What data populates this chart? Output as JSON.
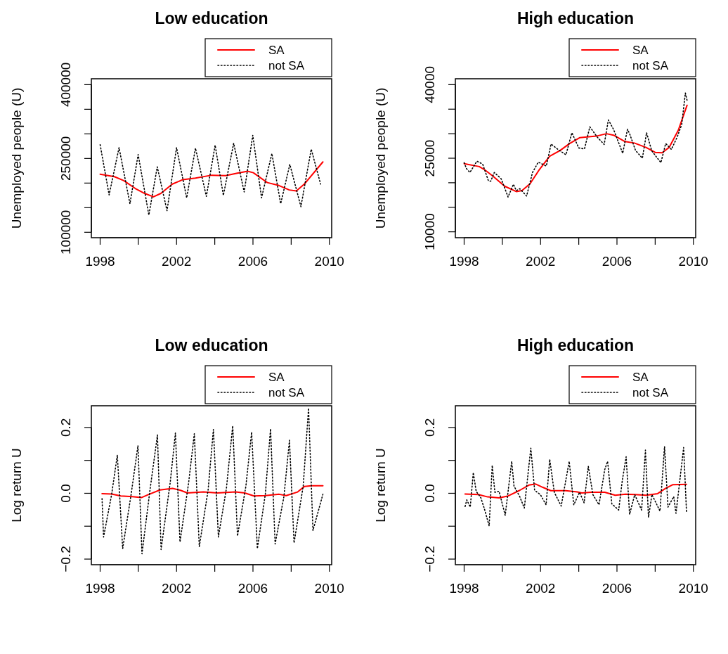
{
  "chart_data": [
    {
      "type": "line",
      "title": "Low education",
      "ylabel": "Unemployed people (U)",
      "xlim": [
        1997.54,
        2010.12
      ],
      "ylim": [
        89000,
        412000
      ],
      "xticks": [
        1998,
        {
          "value": 2000,
          "label": null
        },
        2002,
        {
          "value": 2004,
          "label": null
        },
        2006,
        {
          "value": 2008,
          "label": null
        },
        2010
      ],
      "yticks": [
        100000,
        {
          "value": 150000,
          "label": null
        },
        {
          "value": 200000,
          "label": null
        },
        250000,
        {
          "value": 300000,
          "label": null
        },
        {
          "value": 350000,
          "label": null
        },
        400000
      ],
      "legend": "top right",
      "series": [
        {
          "name": "SA",
          "color": "#ff0000",
          "line_style": "solid",
          "x": [
            1998,
            1998.75,
            1999.24,
            1999.84,
            2000.33,
            2000.79,
            2001.18,
            2001.78,
            2002.33,
            2002.99,
            2003.84,
            2004.57,
            2005.18,
            2005.72,
            2006.02,
            2006.75,
            2007.36,
            2007.9,
            2008.27,
            2008.69,
            2009.66
          ],
          "values": [
            218000,
            213000,
            205000,
            189000,
            179000,
            172000,
            179000,
            198000,
            207000,
            210000,
            216000,
            215000,
            220000,
            224000,
            221000,
            201000,
            195000,
            186000,
            184000,
            198000,
            243000
          ]
        },
        {
          "name": "not SA",
          "color": "#000000",
          "line_style": "dotted",
          "x": [
            1998.0,
            1998.47,
            1998.99,
            1999.56,
            1999.99,
            2000.55,
            2000.99,
            2001.5,
            2002.0,
            2002.53,
            2002.99,
            2003.56,
            2004.02,
            2004.45,
            2004.99,
            2005.54,
            2005.99,
            2006.45,
            2006.99,
            2007.45,
            2007.93,
            2008.51,
            2009.05,
            2009.54
          ],
          "values": [
            278000,
            176000,
            272000,
            158000,
            258000,
            135000,
            233000,
            144000,
            272000,
            170000,
            271000,
            173000,
            277000,
            175000,
            281000,
            182000,
            297000,
            170000,
            260000,
            158000,
            238000,
            152000,
            269000,
            198000
          ]
        }
      ]
    },
    {
      "type": "line",
      "title": "High education",
      "ylabel": "Unemployed people (U)",
      "xlim": [
        1997.54,
        2010.12
      ],
      "ylim": [
        8800,
        41200
      ],
      "xticks": [
        1998,
        {
          "value": 2000,
          "label": null
        },
        2002,
        {
          "value": 2004,
          "label": null
        },
        2006,
        {
          "value": 2008,
          "label": null
        },
        2010
      ],
      "yticks": [
        10000,
        {
          "value": 15000,
          "label": null
        },
        {
          "value": 20000,
          "label": null
        },
        25000,
        {
          "value": 30000,
          "label": null
        },
        {
          "value": 35000,
          "label": null
        },
        40000
      ],
      "legend": "top right",
      "series": [
        {
          "name": "SA",
          "color": "#ff0000",
          "line_style": "solid",
          "x": [
            1998,
            1998.79,
            1999.09,
            1999.52,
            2000.12,
            2000.73,
            2001.03,
            2001.45,
            2001.94,
            2002.48,
            2003.03,
            2003.52,
            2004.06,
            2004.91,
            2005.45,
            2005.82,
            2006.42,
            2006.91,
            2007.52,
            2008.0,
            2008.36,
            2008.73,
            2009.21,
            2009.67
          ],
          "values": [
            23900,
            23300,
            22600,
            21300,
            19300,
            18200,
            18400,
            19800,
            22700,
            25400,
            26600,
            28000,
            29200,
            29500,
            30000,
            29700,
            28400,
            28100,
            27200,
            26200,
            26100,
            27200,
            30700,
            35800
          ]
        },
        {
          "name": "not SA",
          "color": "#000000",
          "line_style": "dotted",
          "x": [
            1998,
            1998.12,
            1998.3,
            1998.67,
            1998.97,
            1999.27,
            1999.39,
            1999.58,
            1999.94,
            2000.3,
            2000.58,
            2000.73,
            2000.91,
            2001.27,
            2001.58,
            2001.88,
            2002.3,
            2002.55,
            2002.91,
            2003.33,
            2003.64,
            2004.0,
            2004.3,
            2004.58,
            2004.97,
            2005.33,
            2005.55,
            2005.82,
            2006.3,
            2006.55,
            2006.67,
            2006.97,
            2007.33,
            2007.55,
            2007.82,
            2008.3,
            2008.55,
            2008.85,
            2009.15,
            2009.39,
            2009.58,
            2009.67
          ],
          "values": [
            24100,
            22900,
            22100,
            24400,
            23800,
            20400,
            20300,
            22100,
            20800,
            17100,
            19700,
            18400,
            18800,
            17300,
            22100,
            24200,
            23400,
            27900,
            26800,
            25700,
            30200,
            27100,
            26900,
            31400,
            29300,
            27800,
            32800,
            30900,
            26000,
            30900,
            29900,
            26600,
            25000,
            30200,
            26500,
            24100,
            28000,
            26800,
            29300,
            31900,
            38300,
            36800
          ]
        }
      ]
    },
    {
      "type": "line",
      "title": "Low education",
      "ylabel": "Log return U",
      "xlim": [
        1997.54,
        2010.12
      ],
      "ylim": [
        -0.217,
        0.266
      ],
      "xticks": [
        1998,
        {
          "value": 2000,
          "label": null
        },
        2002,
        {
          "value": 2004,
          "label": null
        },
        2006,
        {
          "value": 2008,
          "label": null
        },
        2010
      ],
      "yticks": [
        {
          "value": -0.2,
          "label": "−0.2"
        },
        {
          "value": -0.1,
          "label": null
        },
        {
          "value": 0,
          "label": "0.0"
        },
        {
          "value": 0.1,
          "label": null
        },
        {
          "value": 0.2,
          "label": "0.2"
        }
      ],
      "legend": "top right",
      "series": [
        {
          "name": "SA",
          "color": "#ff0000",
          "line_style": "solid",
          "x": [
            1998.1,
            1998.6,
            1999.08,
            1999.68,
            2000.16,
            2000.52,
            2001.13,
            2001.79,
            2002.21,
            2002.57,
            2003.41,
            2004.13,
            2005.09,
            2005.57,
            2006.05,
            2006.65,
            2007.37,
            2007.74,
            2008.34,
            2008.7,
            2009.06,
            2009.66
          ],
          "values": [
            -0.001,
            -0.002,
            -0.008,
            -0.01,
            -0.013,
            -0.004,
            0.01,
            0.015,
            0.009,
            0.001,
            0.004,
            0.001,
            0.004,
            0.001,
            -0.008,
            -0.007,
            -0.003,
            -0.007,
            0.004,
            0.021,
            0.023,
            0.023
          ]
        },
        {
          "name": "not SA",
          "color": "#000000",
          "line_style": "dotted",
          "x": [
            1998.1,
            1998.18,
            1998.6,
            1998.9,
            1999.18,
            1999.62,
            1999.98,
            2000.19,
            2000.62,
            2001.0,
            2001.19,
            2001.67,
            2001.94,
            2002.18,
            2002.63,
            2002.93,
            2003.19,
            2003.65,
            2003.93,
            2004.19,
            2004.61,
            2004.94,
            2005.19,
            2005.63,
            2005.93,
            2006.23,
            2006.65,
            2006.92,
            2007.16,
            2007.62,
            2007.91,
            2008.15,
            2008.63,
            2008.91,
            2009.14,
            2009.42,
            2009.66
          ],
          "values": [
            -0.016,
            -0.133,
            -0.004,
            0.116,
            -0.168,
            -0.004,
            0.145,
            -0.184,
            0.015,
            0.177,
            -0.171,
            0.034,
            0.183,
            -0.148,
            0.031,
            0.181,
            -0.162,
            0.009,
            0.194,
            -0.133,
            0.015,
            0.205,
            -0.13,
            0.022,
            0.186,
            -0.168,
            -0.001,
            0.196,
            -0.154,
            -0.01,
            0.161,
            -0.151,
            0.022,
            0.259,
            -0.113,
            -0.054,
            -0.003
          ]
        }
      ]
    },
    {
      "type": "line",
      "title": "High education",
      "ylabel": "Log return U",
      "xlim": [
        1997.54,
        2010.12
      ],
      "ylim": [
        -0.217,
        0.266
      ],
      "xticks": [
        1998,
        {
          "value": 2000,
          "label": null
        },
        2002,
        {
          "value": 2004,
          "label": null
        },
        2006,
        {
          "value": 2008,
          "label": null
        },
        2010
      ],
      "yticks": [
        {
          "value": -0.2,
          "label": "−0.2"
        },
        {
          "value": -0.1,
          "label": null
        },
        {
          "value": 0,
          "label": "0.0"
        },
        {
          "value": 0.1,
          "label": null
        },
        {
          "value": 0.2,
          "label": "0.2"
        }
      ],
      "legend": "top right",
      "series": [
        {
          "name": "SA",
          "color": "#ff0000",
          "line_style": "solid",
          "x": [
            1998.05,
            1998.75,
            1999.23,
            1999.83,
            2000.31,
            2000.91,
            2001.39,
            2001.75,
            2002.12,
            2002.54,
            2003.32,
            2003.92,
            2004.16,
            2004.64,
            2005.36,
            2005.91,
            2006.45,
            2006.93,
            2007.53,
            2008.13,
            2008.55,
            2008.91,
            2009.64
          ],
          "values": [
            -0.002,
            -0.004,
            -0.011,
            -0.014,
            -0.008,
            0.009,
            0.025,
            0.028,
            0.018,
            0.008,
            0.008,
            0.004,
            0.001,
            0.003,
            0.003,
            -0.006,
            -0.003,
            -0.004,
            -0.006,
            -0.001,
            0.015,
            0.026,
            0.027
          ]
        },
        {
          "name": "not SA",
          "color": "#000000",
          "line_style": "dotted",
          "x": [
            1998.05,
            1998.14,
            1998.32,
            1998.48,
            1998.63,
            1998.87,
            1999.05,
            1999.31,
            1999.47,
            1999.61,
            1999.83,
            2000.01,
            2000.15,
            2000.49,
            2000.61,
            2000.91,
            2001.15,
            2001.49,
            2001.69,
            2001.99,
            2002.29,
            2002.48,
            2002.72,
            2003.08,
            2003.5,
            2003.74,
            2004.04,
            2004.28,
            2004.5,
            2004.74,
            2005.06,
            2005.36,
            2005.51,
            2005.73,
            2006.09,
            2006.27,
            2006.48,
            2006.66,
            2006.93,
            2007.29,
            2007.49,
            2007.65,
            2007.83,
            2008.25,
            2008.49,
            2008.67,
            2008.97,
            2009.09,
            2009.49,
            2009.64
          ],
          "values": [
            -0.04,
            -0.02,
            -0.042,
            0.063,
            0.006,
            -0.013,
            -0.045,
            -0.099,
            0.085,
            0.003,
            0.006,
            -0.035,
            -0.067,
            0.097,
            0.022,
            -0.01,
            -0.045,
            0.137,
            0.009,
            -0.004,
            -0.035,
            0.103,
            0.003,
            -0.039,
            0.097,
            -0.035,
            0.003,
            -0.029,
            0.082,
            -0.004,
            -0.035,
            0.072,
            0.097,
            -0.032,
            -0.051,
            0.035,
            0.111,
            -0.064,
            -0.004,
            -0.051,
            0.131,
            -0.073,
            -0.004,
            -0.054,
            0.142,
            -0.042,
            -0.01,
            -0.061,
            0.139,
            -0.057
          ]
        }
      ]
    }
  ]
}
